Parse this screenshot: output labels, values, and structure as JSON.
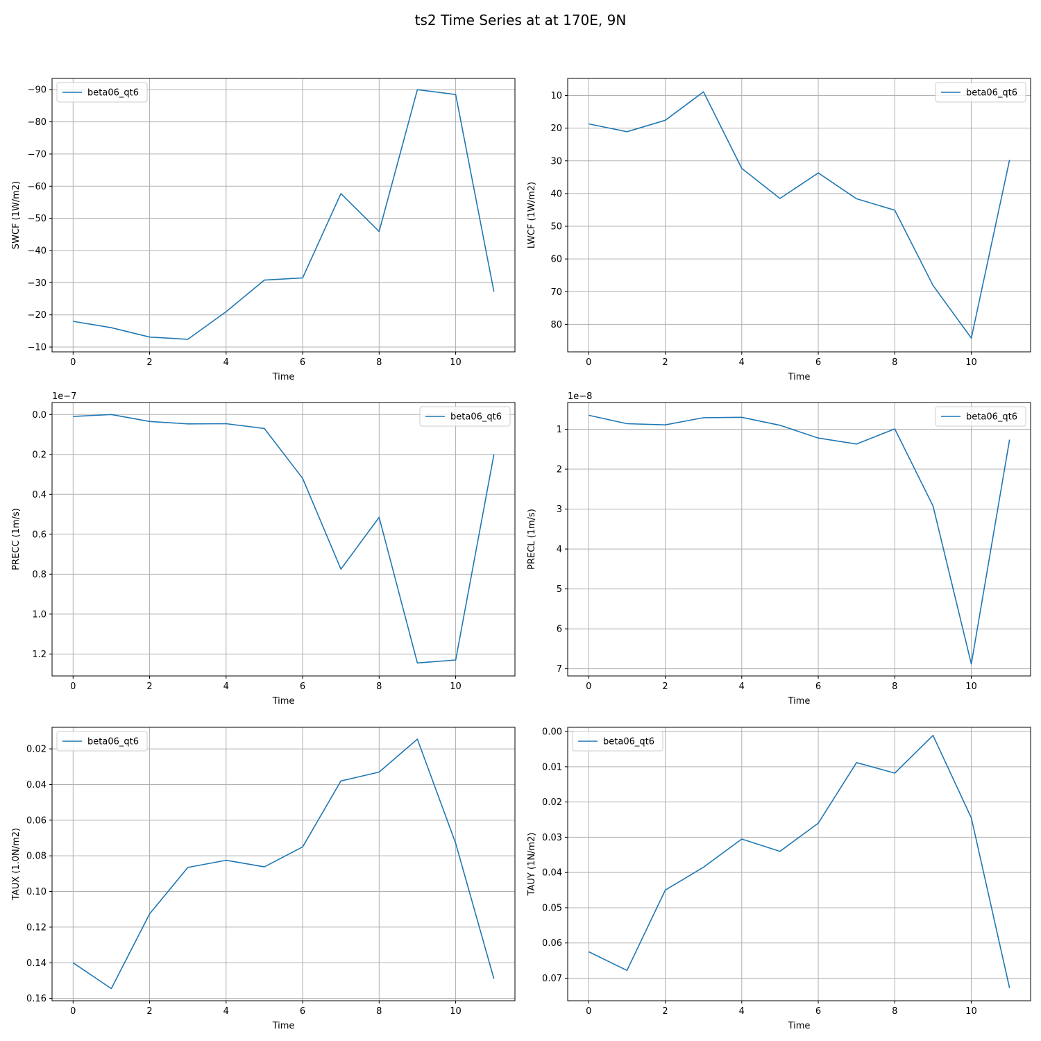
{
  "figure": {
    "title": "ts2 Time Series at at 170E, 9N"
  },
  "chart_data": [
    {
      "type": "line",
      "xlabel": "Time",
      "ylabel": "SWCF (1W/m2)",
      "y_inverted": true,
      "xlim": [
        -0.55,
        11.55
      ],
      "ylim": [
        -8.5,
        -93.5
      ],
      "xticks": [
        0,
        2,
        4,
        6,
        8,
        10
      ],
      "xtick_labels": [
        "0",
        "2",
        "4",
        "6",
        "8",
        "10"
      ],
      "yticks": [
        -10,
        -20,
        -30,
        -40,
        -50,
        -60,
        -70,
        -80,
        -90
      ],
      "ytick_labels": [
        "−10",
        "−20",
        "−30",
        "−40",
        "−50",
        "−60",
        "−70",
        "−80",
        "−90"
      ],
      "offset_text": "",
      "grid": true,
      "legend_position": "upper-left",
      "series": [
        {
          "name": "beta06_qt6",
          "color": "#1f77b4",
          "x": [
            0,
            1,
            2,
            3,
            4,
            5,
            6,
            7,
            8,
            9,
            10,
            11
          ],
          "y": [
            -18.0,
            -16.0,
            -13.1,
            -12.4,
            -21.0,
            -30.8,
            -31.5,
            -57.7,
            -45.9,
            -90.0,
            -88.5,
            -27.2
          ]
        }
      ]
    },
    {
      "type": "line",
      "xlabel": "Time",
      "ylabel": "LWCF (1W/m2)",
      "y_inverted": true,
      "xlim": [
        -0.55,
        11.55
      ],
      "ylim": [
        88.4,
        4.8
      ],
      "xticks": [
        0,
        2,
        4,
        6,
        8,
        10
      ],
      "xtick_labels": [
        "0",
        "2",
        "4",
        "6",
        "8",
        "10"
      ],
      "yticks": [
        10,
        20,
        30,
        40,
        50,
        60,
        70,
        80
      ],
      "ytick_labels": [
        "10",
        "20",
        "30",
        "40",
        "50",
        "60",
        "70",
        "80"
      ],
      "offset_text": "",
      "grid": true,
      "legend_position": "upper-right",
      "series": [
        {
          "name": "beta06_qt6",
          "color": "#1f77b4",
          "x": [
            0,
            1,
            2,
            3,
            4,
            5,
            6,
            7,
            8,
            9,
            10,
            11
          ],
          "y": [
            18.7,
            21.1,
            17.6,
            8.9,
            32.3,
            41.5,
            33.7,
            41.6,
            45.1,
            68.1,
            84.2,
            29.7
          ]
        }
      ]
    },
    {
      "type": "line",
      "xlabel": "Time",
      "ylabel": "PRECC (1m/s)",
      "y_inverted": true,
      "y_multiplier": 1e-07,
      "xlim": [
        -0.55,
        11.55
      ],
      "ylim": [
        1.31,
        -0.06
      ],
      "xticks": [
        0,
        2,
        4,
        6,
        8,
        10
      ],
      "xtick_labels": [
        "0",
        "2",
        "4",
        "6",
        "8",
        "10"
      ],
      "yticks": [
        0.0,
        0.2,
        0.4,
        0.6,
        0.8,
        1.0,
        1.2
      ],
      "ytick_labels": [
        "0.0",
        "0.2",
        "0.4",
        "0.6",
        "0.8",
        "1.0",
        "1.2"
      ],
      "offset_text": "1e−7",
      "grid": true,
      "legend_position": "upper-right",
      "series": [
        {
          "name": "beta06_qt6",
          "color": "#1f77b4",
          "x": [
            0,
            1,
            2,
            3,
            4,
            5,
            6,
            7,
            8,
            9,
            10,
            11
          ],
          "y": [
            0.01,
            0.0,
            0.035,
            0.047,
            0.046,
            0.07,
            0.32,
            0.775,
            0.515,
            1.245,
            1.23,
            0.2
          ]
        }
      ]
    },
    {
      "type": "line",
      "xlabel": "Time",
      "ylabel": "PRECL (1m/s)",
      "y_inverted": true,
      "y_multiplier": 1e-08,
      "xlim": [
        -0.55,
        11.55
      ],
      "ylim": [
        7.18,
        0.33
      ],
      "xticks": [
        0,
        2,
        4,
        6,
        8,
        10
      ],
      "xtick_labels": [
        "0",
        "2",
        "4",
        "6",
        "8",
        "10"
      ],
      "yticks": [
        1,
        2,
        3,
        4,
        5,
        6,
        7
      ],
      "ytick_labels": [
        "1",
        "2",
        "3",
        "4",
        "5",
        "6",
        "7"
      ],
      "offset_text": "1e−8",
      "grid": true,
      "legend_position": "upper-right",
      "series": [
        {
          "name": "beta06_qt6",
          "color": "#1f77b4",
          "x": [
            0,
            1,
            2,
            3,
            4,
            5,
            6,
            7,
            8,
            9,
            10,
            11
          ],
          "y": [
            0.65,
            0.86,
            0.89,
            0.71,
            0.7,
            0.9,
            1.22,
            1.37,
            0.99,
            2.92,
            6.88,
            1.26
          ]
        }
      ]
    },
    {
      "type": "line",
      "xlabel": "Time",
      "ylabel": "TAUX (1.0N/m2)",
      "y_inverted": true,
      "xlim": [
        -0.55,
        11.55
      ],
      "ylim": [
        0.1613,
        0.0079
      ],
      "xticks": [
        0,
        2,
        4,
        6,
        8,
        10
      ],
      "xtick_labels": [
        "0",
        "2",
        "4",
        "6",
        "8",
        "10"
      ],
      "yticks": [
        0.02,
        0.04,
        0.06,
        0.08,
        0.1,
        0.12,
        0.14,
        0.16
      ],
      "ytick_labels": [
        "0.02",
        "0.04",
        "0.06",
        "0.08",
        "0.10",
        "0.12",
        "0.14",
        "0.16"
      ],
      "offset_text": "",
      "grid": true,
      "legend_position": "upper-left",
      "series": [
        {
          "name": "beta06_qt6",
          "color": "#1f77b4",
          "x": [
            0,
            1,
            2,
            3,
            4,
            5,
            6,
            7,
            8,
            9,
            10,
            11
          ],
          "y": [
            0.14,
            0.1545,
            0.1125,
            0.0865,
            0.0825,
            0.0862,
            0.075,
            0.038,
            0.033,
            0.0145,
            0.073,
            0.149
          ]
        }
      ]
    },
    {
      "type": "line",
      "xlabel": "Time",
      "ylabel": "TAUY (1N/m2)",
      "y_inverted": true,
      "xlim": [
        -0.55,
        11.55
      ],
      "ylim": [
        0.0764,
        -0.0012
      ],
      "xticks": [
        0,
        2,
        4,
        6,
        8,
        10
      ],
      "xtick_labels": [
        "0",
        "2",
        "4",
        "6",
        "8",
        "10"
      ],
      "yticks": [
        0.0,
        0.01,
        0.02,
        0.03,
        0.04,
        0.05,
        0.06,
        0.07
      ],
      "ytick_labels": [
        "0.00",
        "0.01",
        "0.02",
        "0.03",
        "0.04",
        "0.05",
        "0.06",
        "0.07"
      ],
      "offset_text": "",
      "grid": true,
      "legend_position": "upper-left",
      "series": [
        {
          "name": "beta06_qt6",
          "color": "#1f77b4",
          "x": [
            0,
            1,
            2,
            3,
            4,
            5,
            6,
            7,
            8,
            9,
            10,
            11
          ],
          "y": [
            0.0625,
            0.0678,
            0.045,
            0.0385,
            0.0305,
            0.034,
            0.026,
            0.0088,
            0.0118,
            0.0011,
            0.0245,
            0.0728
          ]
        }
      ]
    }
  ]
}
